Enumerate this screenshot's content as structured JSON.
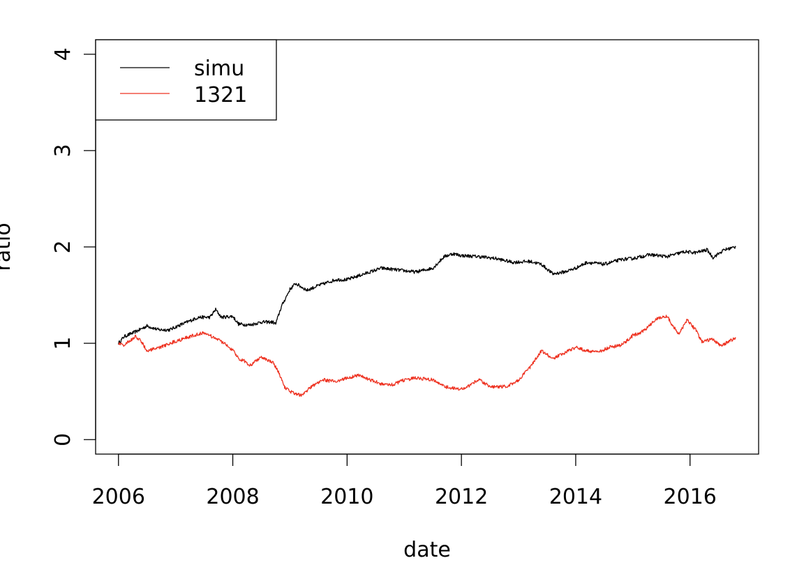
{
  "chart_data": {
    "type": "line",
    "title": "",
    "xlabel": "date",
    "ylabel": "ratio",
    "xlim": [
      2005.6,
      2017.2
    ],
    "ylim": [
      -0.15,
      4.15
    ],
    "x_ticks": [
      2006,
      2008,
      2010,
      2012,
      2014,
      2016
    ],
    "y_ticks": [
      0,
      1,
      2,
      3,
      4
    ],
    "grid": false,
    "legend_position": "top-left",
    "series": [
      {
        "name": "simu",
        "color": "#000000",
        "points": [
          [
            2006.0,
            1.0
          ],
          [
            2006.1,
            1.07
          ],
          [
            2006.3,
            1.12
          ],
          [
            2006.5,
            1.18
          ],
          [
            2006.7,
            1.14
          ],
          [
            2006.9,
            1.14
          ],
          [
            2007.0,
            1.17
          ],
          [
            2007.2,
            1.22
          ],
          [
            2007.4,
            1.27
          ],
          [
            2007.6,
            1.27
          ],
          [
            2007.7,
            1.35
          ],
          [
            2007.8,
            1.27
          ],
          [
            2008.0,
            1.28
          ],
          [
            2008.1,
            1.2
          ],
          [
            2008.3,
            1.19
          ],
          [
            2008.5,
            1.22
          ],
          [
            2008.7,
            1.22
          ],
          [
            2008.75,
            1.2
          ],
          [
            2008.85,
            1.38
          ],
          [
            2009.0,
            1.56
          ],
          [
            2009.1,
            1.62
          ],
          [
            2009.3,
            1.55
          ],
          [
            2009.5,
            1.6
          ],
          [
            2009.8,
            1.66
          ],
          [
            2010.0,
            1.66
          ],
          [
            2010.3,
            1.72
          ],
          [
            2010.6,
            1.78
          ],
          [
            2010.9,
            1.76
          ],
          [
            2011.2,
            1.74
          ],
          [
            2011.5,
            1.78
          ],
          [
            2011.7,
            1.9
          ],
          [
            2011.85,
            1.93
          ],
          [
            2012.0,
            1.91
          ],
          [
            2012.3,
            1.9
          ],
          [
            2012.6,
            1.88
          ],
          [
            2012.9,
            1.84
          ],
          [
            2013.2,
            1.85
          ],
          [
            2013.4,
            1.82
          ],
          [
            2013.6,
            1.72
          ],
          [
            2013.8,
            1.74
          ],
          [
            2014.0,
            1.78
          ],
          [
            2014.2,
            1.84
          ],
          [
            2014.5,
            1.82
          ],
          [
            2014.8,
            1.87
          ],
          [
            2015.0,
            1.88
          ],
          [
            2015.3,
            1.92
          ],
          [
            2015.6,
            1.9
          ],
          [
            2015.9,
            1.95
          ],
          [
            2016.1,
            1.94
          ],
          [
            2016.3,
            1.97
          ],
          [
            2016.4,
            1.89
          ],
          [
            2016.6,
            1.97
          ],
          [
            2016.8,
            2.0
          ]
        ]
      },
      {
        "name": "1321",
        "color": "#ee3322",
        "points": [
          [
            2006.0,
            1.0
          ],
          [
            2006.1,
            0.98
          ],
          [
            2006.3,
            1.07
          ],
          [
            2006.4,
            1.02
          ],
          [
            2006.5,
            0.92
          ],
          [
            2006.7,
            0.95
          ],
          [
            2006.9,
            1.0
          ],
          [
            2007.1,
            1.04
          ],
          [
            2007.3,
            1.08
          ],
          [
            2007.5,
            1.11
          ],
          [
            2007.6,
            1.08
          ],
          [
            2007.8,
            1.02
          ],
          [
            2008.0,
            0.93
          ],
          [
            2008.1,
            0.84
          ],
          [
            2008.2,
            0.82
          ],
          [
            2008.3,
            0.77
          ],
          [
            2008.5,
            0.86
          ],
          [
            2008.7,
            0.8
          ],
          [
            2008.8,
            0.7
          ],
          [
            2008.9,
            0.55
          ],
          [
            2009.0,
            0.5
          ],
          [
            2009.2,
            0.46
          ],
          [
            2009.4,
            0.56
          ],
          [
            2009.6,
            0.62
          ],
          [
            2009.8,
            0.6
          ],
          [
            2010.0,
            0.64
          ],
          [
            2010.2,
            0.67
          ],
          [
            2010.4,
            0.62
          ],
          [
            2010.6,
            0.58
          ],
          [
            2010.8,
            0.57
          ],
          [
            2011.0,
            0.62
          ],
          [
            2011.2,
            0.64
          ],
          [
            2011.5,
            0.62
          ],
          [
            2011.7,
            0.55
          ],
          [
            2012.0,
            0.52
          ],
          [
            2012.2,
            0.58
          ],
          [
            2012.3,
            0.63
          ],
          [
            2012.5,
            0.55
          ],
          [
            2012.8,
            0.55
          ],
          [
            2013.0,
            0.62
          ],
          [
            2013.2,
            0.75
          ],
          [
            2013.4,
            0.92
          ],
          [
            2013.6,
            0.84
          ],
          [
            2013.8,
            0.9
          ],
          [
            2014.0,
            0.96
          ],
          [
            2014.2,
            0.92
          ],
          [
            2014.4,
            0.91
          ],
          [
            2014.6,
            0.96
          ],
          [
            2014.8,
            0.98
          ],
          [
            2015.0,
            1.08
          ],
          [
            2015.2,
            1.13
          ],
          [
            2015.4,
            1.25
          ],
          [
            2015.6,
            1.28
          ],
          [
            2015.7,
            1.18
          ],
          [
            2015.8,
            1.1
          ],
          [
            2015.95,
            1.24
          ],
          [
            2016.1,
            1.14
          ],
          [
            2016.2,
            1.02
          ],
          [
            2016.4,
            1.04
          ],
          [
            2016.55,
            0.97
          ],
          [
            2016.7,
            1.03
          ],
          [
            2016.8,
            1.05
          ]
        ]
      }
    ]
  }
}
